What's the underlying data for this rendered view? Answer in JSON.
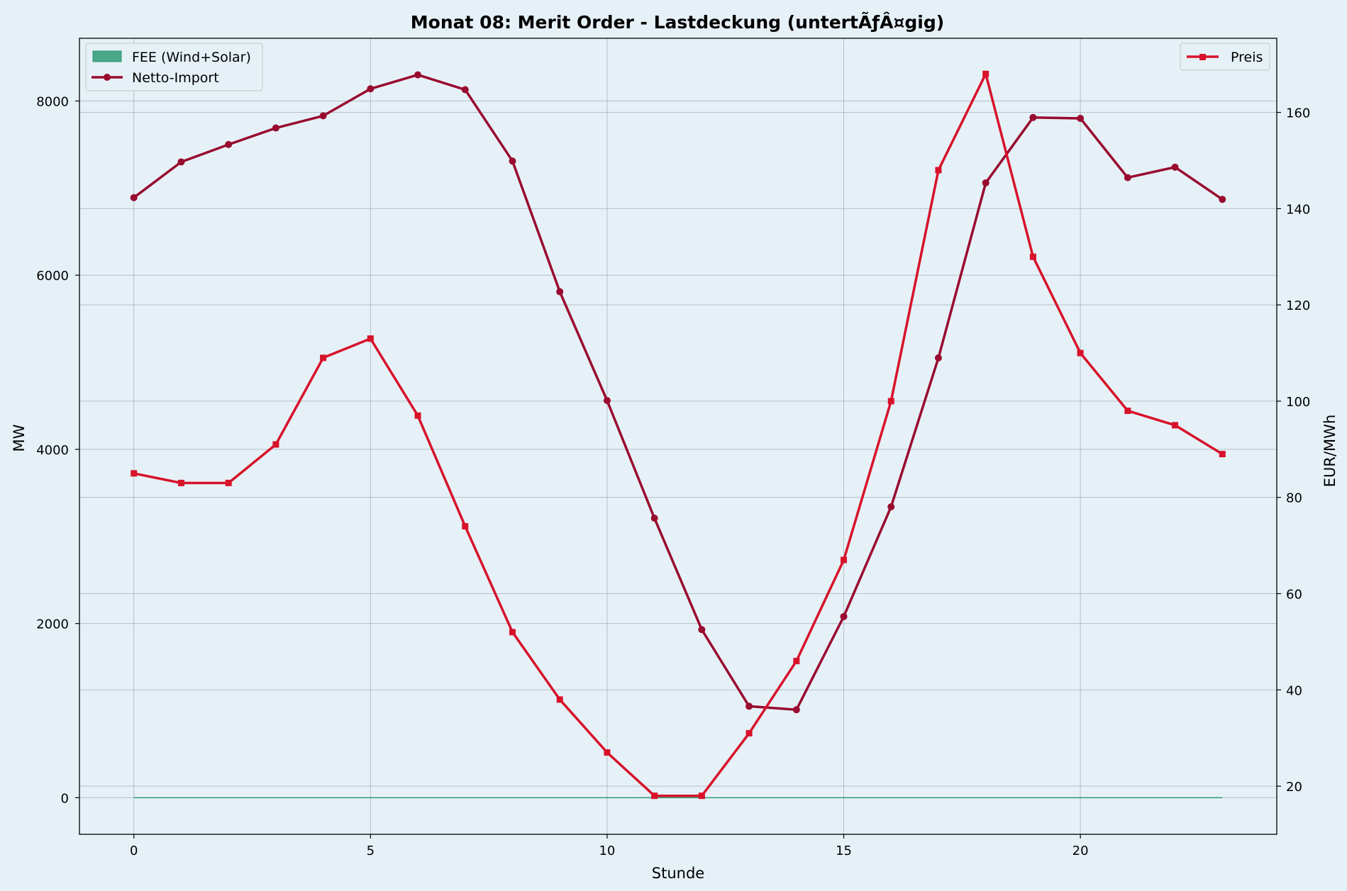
{
  "chart_data": {
    "type": "line",
    "title": "Monat 08: Merit Order - Lastdeckung (untertÃƒÂ¤gig)",
    "xlabel": "Stunde",
    "ylabel": "MW",
    "y2label": "EUR/MWh",
    "xlim": [
      -1.15,
      24.15
    ],
    "ylim": [
      -420,
      8720
    ],
    "y2lim": [
      10,
      175.4
    ],
    "xticks": [
      0,
      5,
      10,
      15,
      20
    ],
    "yticks": [
      0,
      2000,
      4000,
      6000,
      8000
    ],
    "y2ticks": [
      20,
      40,
      60,
      80,
      100,
      120,
      140,
      160
    ],
    "grid": true,
    "legend_left": "top-left",
    "legend_right": "top-right",
    "x": [
      0,
      1,
      2,
      3,
      4,
      5,
      6,
      7,
      8,
      9,
      10,
      11,
      12,
      13,
      14,
      15,
      16,
      17,
      18,
      19,
      20,
      21,
      22,
      23
    ],
    "series": [
      {
        "name": "FEE (Wind+Solar)",
        "kind": "area",
        "axis": "left",
        "color": "#2e9a74",
        "values": [
          0,
          0,
          0,
          0,
          0,
          0,
          0,
          0,
          0,
          0,
          0,
          0,
          0,
          0,
          0,
          0,
          0,
          0,
          0,
          0,
          0,
          0,
          0,
          0
        ]
      },
      {
        "name": "Netto-Import",
        "kind": "line",
        "marker": "circle",
        "axis": "left",
        "color": "#990b2f",
        "values": [
          6890,
          7300,
          7500,
          7690,
          7830,
          8140,
          8300,
          8130,
          7310,
          5810,
          4560,
          3210,
          1930,
          1050,
          1010,
          2080,
          3340,
          5050,
          7060,
          7810,
          7800,
          7120,
          7240,
          6870
        ]
      },
      {
        "name": "Preis",
        "kind": "line",
        "marker": "square",
        "axis": "right",
        "color": "#d7122a",
        "values": [
          85,
          83,
          83,
          91,
          109,
          113,
          97,
          74,
          52,
          38,
          27,
          18,
          18,
          31,
          46,
          67,
          100,
          148,
          168,
          130,
          110,
          98,
          95,
          89
        ]
      }
    ]
  }
}
